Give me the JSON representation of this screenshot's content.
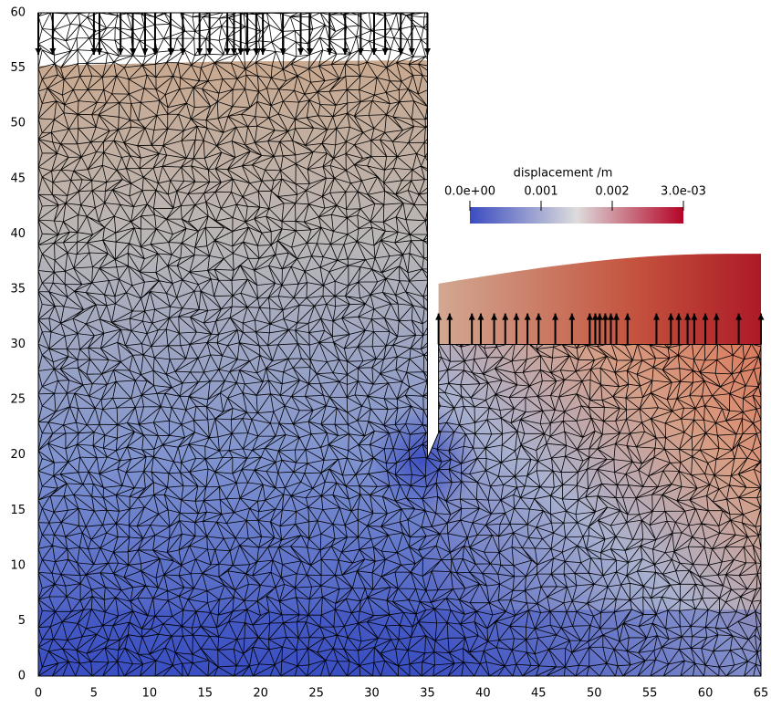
{
  "chart_data": {
    "type": "field",
    "xlim": [
      0,
      65
    ],
    "ylim": [
      0,
      60
    ],
    "xticks": [
      0,
      5,
      10,
      15,
      20,
      25,
      30,
      35,
      40,
      45,
      50,
      55,
      60,
      65
    ],
    "yticks": [
      0,
      5,
      10,
      15,
      20,
      25,
      30,
      35,
      40,
      45,
      50,
      55,
      60
    ],
    "colorbar": {
      "title": "displacement /m",
      "clim": [
        0,
        0.003
      ],
      "ticks": [
        {
          "value": 0,
          "label": "0.0e+00"
        },
        0.001,
        0.002,
        {
          "value": 0.003,
          "label": "3.0e-03"
        }
      ],
      "colors": [
        "#3b4cc0",
        "#dddcdc",
        "#b40426"
      ]
    }
  }
}
